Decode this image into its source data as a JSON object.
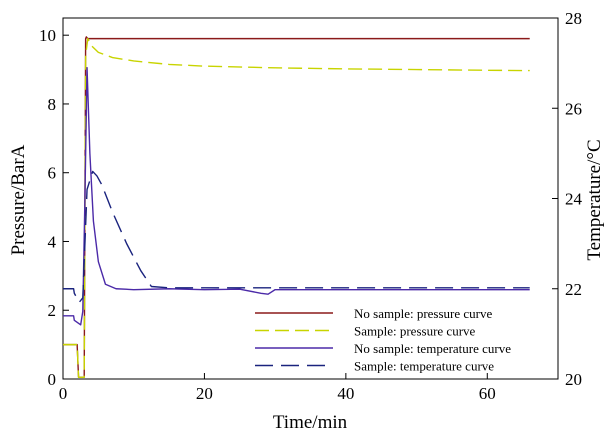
{
  "chart_data": {
    "type": "line",
    "title": "",
    "xlabel": "Time/min",
    "ylabel": "Pressure/BarA",
    "y2label": "Temperature/°C",
    "xlim": [
      0,
      70
    ],
    "ylim": [
      0,
      10.5
    ],
    "y2lim": [
      20,
      28
    ],
    "xticks": [
      0,
      20,
      40,
      60
    ],
    "yticks": [
      0,
      2,
      4,
      6,
      8,
      10
    ],
    "y2ticks": [
      20,
      22,
      24,
      26,
      28
    ],
    "legend_position": "bottom-right",
    "grid": false,
    "series": [
      {
        "name": "No sample: pressure curve",
        "axis": "left",
        "color": "#8b1a1a",
        "dash": "solid",
        "x": [
          0,
          2.0,
          2.2,
          3.0,
          3.2,
          3.3,
          3.5,
          5,
          10,
          20,
          30,
          40,
          50,
          60,
          66
        ],
        "y": [
          1.0,
          1.0,
          0.05,
          0.05,
          9.9,
          9.95,
          9.9,
          9.9,
          9.9,
          9.9,
          9.9,
          9.9,
          9.9,
          9.9,
          9.9
        ]
      },
      {
        "name": "Sample: pressure curve",
        "axis": "left",
        "color": "#c8d400",
        "dash": "dash",
        "x": [
          0,
          2.0,
          2.2,
          3.0,
          3.2,
          3.5,
          4,
          5,
          7,
          10,
          15,
          20,
          30,
          40,
          50,
          60,
          66
        ],
        "y": [
          1.0,
          1.0,
          0.05,
          0.05,
          9.4,
          9.9,
          9.7,
          9.5,
          9.35,
          9.25,
          9.15,
          9.1,
          9.05,
          9.02,
          9.0,
          8.98,
          8.97
        ]
      },
      {
        "name": "No sample: temperature curve",
        "axis": "right",
        "color": "#4b2aa8",
        "dash": "solid",
        "x": [
          0,
          1.5,
          1.6,
          2.5,
          2.8,
          3.1,
          3.4,
          3.8,
          4.3,
          5.0,
          6.0,
          7.5,
          10,
          15,
          20,
          25,
          28,
          29,
          30,
          35,
          40,
          50,
          60,
          66
        ],
        "y": [
          21.4,
          21.4,
          21.3,
          21.2,
          21.5,
          24.0,
          26.9,
          25.0,
          23.5,
          22.6,
          22.1,
          22.0,
          21.98,
          22.0,
          21.98,
          21.99,
          21.9,
          21.88,
          21.98,
          21.98,
          21.98,
          21.98,
          21.98,
          21.98
        ]
      },
      {
        "name": "Sample: temperature curve",
        "axis": "right",
        "color": "#1a237e",
        "dash": "longdash",
        "x": [
          0,
          1.5,
          1.6,
          2.3,
          2.8,
          3.1,
          3.4,
          3.8,
          4.2,
          4.8,
          5.5,
          7,
          9,
          11,
          12.5,
          15,
          20,
          30,
          40,
          50,
          60,
          66
        ],
        "y": [
          22.0,
          22.0,
          21.9,
          21.7,
          21.8,
          23.0,
          24.2,
          24.4,
          24.6,
          24.5,
          24.3,
          23.7,
          23.0,
          22.4,
          22.05,
          22.02,
          22.02,
          22.02,
          22.02,
          22.02,
          22.02,
          22.02
        ]
      }
    ]
  }
}
